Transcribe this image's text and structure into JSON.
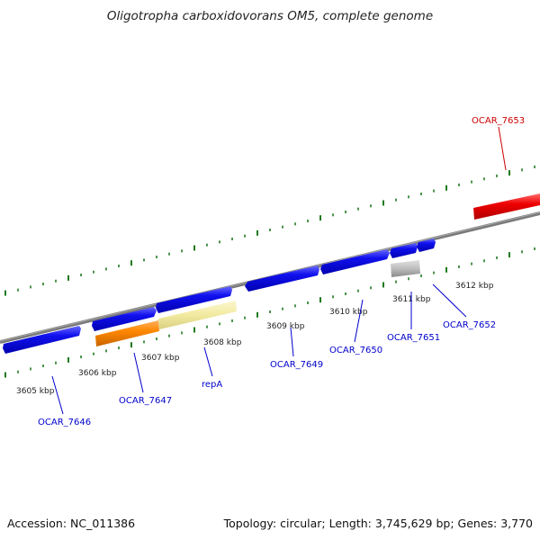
{
  "title": "Oligotropha carboxidovorans OM5, complete genome",
  "footer": {
    "accession": "Accession: NC_011386",
    "topology": "Topology: circular; Length: 3,745,629 bp; Genes: 3,770"
  },
  "scale_labels": [
    "3605 kbp",
    "3606 kbp",
    "3607 kbp",
    "3608 kbp",
    "3609 kbp",
    "3610 kbp",
    "3611 kbp",
    "3612 kbp"
  ],
  "genes": [
    {
      "name": "OCAR_7646",
      "color": "#0000cc"
    },
    {
      "name": "OCAR_7647",
      "color": "#0000cc"
    },
    {
      "name": "repA",
      "color": "#0000cc"
    },
    {
      "name": "OCAR_7649",
      "color": "#0000cc"
    },
    {
      "name": "OCAR_7650",
      "color": "#0000cc"
    },
    {
      "name": "OCAR_7651",
      "color": "#0000cc"
    },
    {
      "name": "OCAR_7652",
      "color": "#0000cc"
    },
    {
      "name": "OCAR_7653",
      "color": "#cc0000"
    }
  ],
  "colors": {
    "cds_blue": "#0000ee",
    "cds_orange": "#ff8800",
    "cds_yellow": "#f2eaa0",
    "cds_gray": "#b8b8b8",
    "cds_red": "#ee0000",
    "backbone": "#808080",
    "ticks": "#1f7a1f"
  }
}
